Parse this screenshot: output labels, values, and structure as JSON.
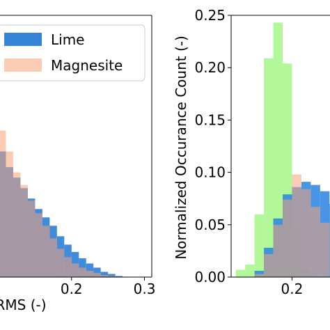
{
  "chart_data": [
    {
      "type": "histogram",
      "xlabel": "RMS (-)",
      "ylabel": "",
      "x_ticks": [
        0.2,
        0.3
      ],
      "xlim": [
        0.1,
        0.31
      ],
      "ylim": [
        0,
        0.25
      ],
      "legend": {
        "placement": "top-right",
        "entries": [
          "Lime",
          "Magnesite"
        ]
      },
      "grid": false,
      "bin_width": 0.01,
      "series": [
        {
          "name": "Lime",
          "color": "#1f77d4",
          "bins_start": [
            0.1,
            0.11,
            0.12,
            0.13,
            0.14,
            0.15,
            0.16,
            0.17,
            0.18,
            0.19,
            0.2,
            0.21,
            0.22,
            0.23,
            0.24,
            0.25,
            0.26
          ],
          "values": [
            0.12,
            0.105,
            0.095,
            0.085,
            0.075,
            0.065,
            0.057,
            0.049,
            0.039,
            0.031,
            0.024,
            0.018,
            0.013,
            0.009,
            0.005,
            0.003,
            0.001
          ]
        },
        {
          "name": "Magnesite",
          "color": "#f8a377",
          "bins_start": [
            0.1,
            0.11,
            0.12,
            0.13,
            0.14,
            0.15,
            0.16,
            0.17,
            0.18,
            0.19,
            0.2,
            0.21,
            0.22,
            0.23,
            0.24,
            0.25
          ],
          "values": [
            0.14,
            0.12,
            0.1,
            0.088,
            0.073,
            0.061,
            0.049,
            0.037,
            0.027,
            0.019,
            0.013,
            0.009,
            0.006,
            0.004,
            0.002,
            0.001
          ]
        }
      ]
    },
    {
      "type": "histogram",
      "xlabel": "",
      "ylabel": "Normalized Occurance Count (-)",
      "x_ticks": [
        0.2
      ],
      "y_ticks": [
        0.0,
        0.05,
        0.1,
        0.15,
        0.2,
        0.25
      ],
      "y_tick_labels": [
        "0.00",
        "0.05",
        "0.10",
        "0.15",
        "0.20",
        "0.25"
      ],
      "xlim": [
        0.135,
        0.245
      ],
      "ylim": [
        0,
        0.25
      ],
      "grid": false,
      "bin_width": 0.01,
      "series": [
        {
          "color": "#98f57a",
          "bins_start": [
            0.14,
            0.15,
            0.16,
            0.17,
            0.18,
            0.19,
            0.2,
            0.21
          ],
          "values": [
            0.007,
            0.012,
            0.06,
            0.209,
            0.243,
            0.204,
            0.045,
            0.007
          ]
        },
        {
          "color": "#2882e0",
          "bins_start": [
            0.15,
            0.16,
            0.17,
            0.18,
            0.19,
            0.2,
            0.21,
            0.22,
            0.23,
            0.24
          ],
          "values": [
            0.0,
            0.006,
            0.028,
            0.056,
            0.079,
            0.086,
            0.091,
            0.088,
            0.082,
            0.07
          ]
        },
        {
          "color": "#f8a377",
          "bins_start": [
            0.16,
            0.17,
            0.18,
            0.19,
            0.2,
            0.21,
            0.22,
            0.23
          ],
          "values": [
            0.003,
            0.022,
            0.05,
            0.074,
            0.098,
            0.084,
            0.067,
            0.052
          ]
        }
      ]
    }
  ]
}
